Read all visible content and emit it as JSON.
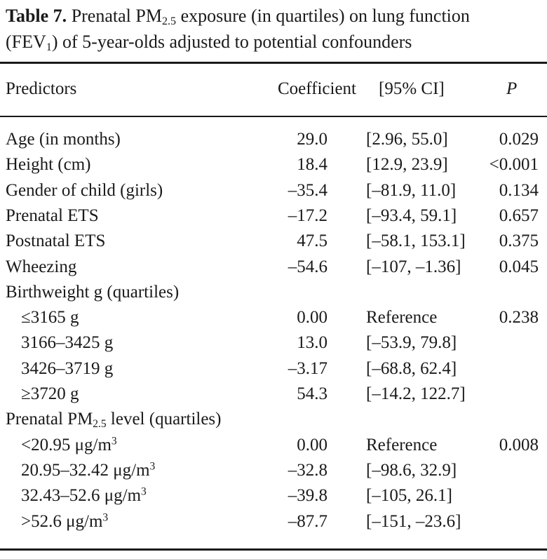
{
  "caption": {
    "label": "Table 7.",
    "line1_a": " Prenatal PM",
    "line1_sub": "2.5",
    "line1_b": " exposure (in quartiles) on lung function",
    "line2_a": "(FEV",
    "line2_sub": "1",
    "line2_b": ") of 5-year-olds adjusted to potential confounders"
  },
  "headers": {
    "predictors": "Predictors",
    "coefficient": "Coefficient",
    "ci": "[95% CI]",
    "p": "P"
  },
  "rows": [
    {
      "predictor": "Age (in months)",
      "coefficient": "29.0",
      "ci": "[2.96, 55.0]",
      "p": "0.029"
    },
    {
      "predictor": "Height (cm)",
      "coefficient": "18.4",
      "ci": "[12.9, 23.9]",
      "p": "<0.001"
    },
    {
      "predictor": "Gender of child (girls)",
      "coefficient": "–35.4",
      "ci": "[–81.9, 11.0]",
      "p": "0.134"
    },
    {
      "predictor": "Prenatal ETS",
      "coefficient": "–17.2",
      "ci": "[–93.4, 59.1]",
      "p": "0.657"
    },
    {
      "predictor": "Postnatal ETS",
      "coefficient": "47.5",
      "ci": "[–58.1, 153.1]",
      "p": "0.375"
    },
    {
      "predictor": "Wheezing",
      "coefficient": "–54.6",
      "ci": "[–107, –1.36]",
      "p": "0.045"
    },
    {
      "predictor": "Birthweight g (quartiles)",
      "coefficient": "",
      "ci": "",
      "p": ""
    },
    {
      "predictor": "≤3165 g",
      "coefficient": "0.00",
      "ci": "Reference",
      "p": "0.238"
    },
    {
      "predictor": "3166–3425 g",
      "coefficient": "13.0",
      "ci": "[–53.9, 79.8]",
      "p": ""
    },
    {
      "predictor": "3426–3719 g",
      "coefficient": "–3.17",
      "ci": "[–68.8, 62.4]",
      "p": ""
    },
    {
      "predictor": "≥3720 g",
      "coefficient": "54.3",
      "ci": "[–14.2, 122.7]",
      "p": ""
    },
    {
      "predictor": "Prenatal PM",
      "predictor_sub": "2.5",
      "predictor_tail": " level (quartiles)",
      "coefficient": "",
      "ci": "",
      "p": ""
    },
    {
      "predictor": "<20.95 μg/m",
      "predictor_sup": "3",
      "coefficient": "0.00",
      "ci": "Reference",
      "p": "0.008"
    },
    {
      "predictor": "20.95–32.42 μg/m",
      "predictor_sup": "3",
      "coefficient": "–32.8",
      "ci": "[–98.6, 32.9]",
      "p": ""
    },
    {
      "predictor": "32.43–52.6 μg/m",
      "predictor_sup": "3",
      "coefficient": "–39.8",
      "ci": "[–105, 26.1]",
      "p": ""
    },
    {
      "predictor": ">52.6 μg/m",
      "predictor_sup": "3",
      "coefficient": "–87.7",
      "ci": "[–151, –23.6]",
      "p": ""
    }
  ]
}
